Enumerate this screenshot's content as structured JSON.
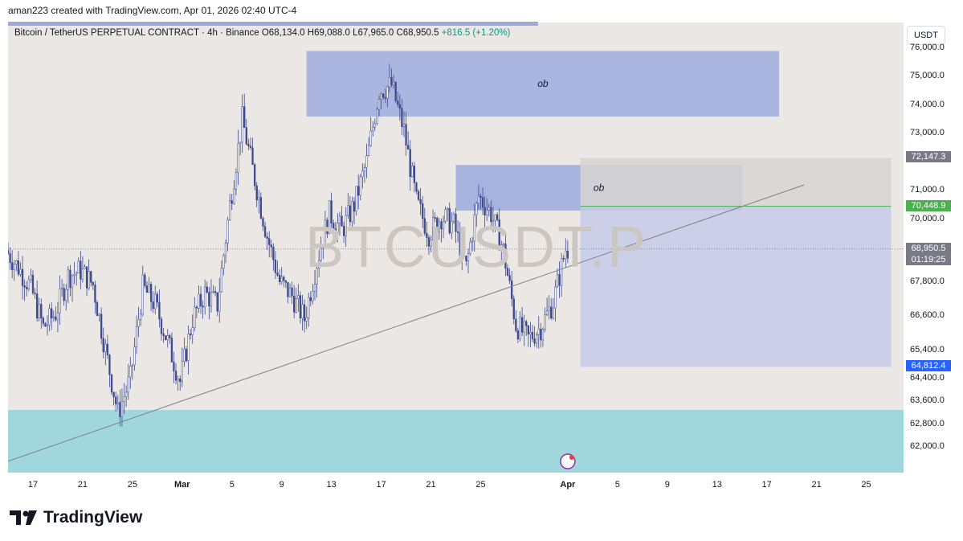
{
  "header": {
    "credit": "aman223 created with TradingView.com, Apr 01, 2026 02:40 UTC-4"
  },
  "legend": {
    "symbol": "Bitcoin / TetherUS PERPETUAL CONTRACT · 4h · Binance",
    "open": "O68,134.0",
    "high": "H69,088.0",
    "low": "L67,965.0",
    "close": "C68,950.5",
    "change": "+816.5 (+1.20%)"
  },
  "currency_button": "USDT",
  "watermark": "BTCUSDT.P",
  "brand": "TradingView",
  "colors": {
    "background": "#ebe7e4",
    "candle_up": "#3d4a8f",
    "candle_down": "#3d4a8f",
    "ob_zone": "#9fadde",
    "demand_zone": "#9fd7dd",
    "position_zone": "#c5cbe9",
    "stop_zone": "#d7d3d1",
    "label_grey": "#787b86",
    "label_green": "#4caf50",
    "label_blue": "#2962ff"
  },
  "chart_data": {
    "type": "candlestick",
    "title": "",
    "xlabel": "",
    "ylabel": "",
    "ylim": [
      61100,
      76900
    ],
    "y_ticks": [
      "76,000.0",
      "75,000.0",
      "74,000.0",
      "73,000.0",
      "71,000.0",
      "70,000.0",
      "67,800.0",
      "66,600.0",
      "65,400.0",
      "64,400.0",
      "63,600.0",
      "62,800.0",
      "62,000.0"
    ],
    "y_tick_values": [
      76000,
      75000,
      74000,
      73000,
      71000,
      70000,
      67800,
      66600,
      65400,
      64400,
      63600,
      62800,
      62000
    ],
    "x_ticks": [
      "17",
      "21",
      "25",
      "Mar",
      "5",
      "9",
      "13",
      "17",
      "21",
      "25",
      "Apr",
      "5",
      "9",
      "13",
      "17",
      "21",
      "25"
    ],
    "x_tick_major": [
      "Mar",
      "Apr"
    ],
    "x_tick_dates": [
      "2026-02-17",
      "2026-02-21",
      "2026-02-25",
      "2026-03-01",
      "2026-03-05",
      "2026-03-09",
      "2026-03-13",
      "2026-03-17",
      "2026-03-21",
      "2026-03-25",
      "2026-04-01",
      "2026-04-05",
      "2026-04-09",
      "2026-04-13",
      "2026-04-17",
      "2026-04-21",
      "2026-04-25"
    ],
    "x_range": [
      "2026-02-15",
      "2026-04-28"
    ],
    "price_path": [
      {
        "date": "2026-02-15",
        "price": 68900
      },
      {
        "date": "2026-02-16",
        "price": 68300
      },
      {
        "date": "2026-02-17",
        "price": 67600
      },
      {
        "date": "2026-02-18",
        "price": 66200
      },
      {
        "date": "2026-02-19",
        "price": 66700
      },
      {
        "date": "2026-02-20",
        "price": 68000
      },
      {
        "date": "2026-02-21",
        "price": 68200
      },
      {
        "date": "2026-02-22",
        "price": 67700
      },
      {
        "date": "2026-02-23",
        "price": 65400
      },
      {
        "date": "2026-02-24",
        "price": 63200
      },
      {
        "date": "2026-02-25",
        "price": 64400
      },
      {
        "date": "2026-02-26",
        "price": 67600
      },
      {
        "date": "2026-02-27",
        "price": 67000
      },
      {
        "date": "2026-02-28",
        "price": 65700
      },
      {
        "date": "2026-03-01",
        "price": 64300
      },
      {
        "date": "2026-03-02",
        "price": 66500
      },
      {
        "date": "2026-03-03",
        "price": 67400
      },
      {
        "date": "2026-03-04",
        "price": 67000
      },
      {
        "date": "2026-03-05",
        "price": 70500
      },
      {
        "date": "2026-03-06",
        "price": 73500
      },
      {
        "date": "2026-03-07",
        "price": 71400
      },
      {
        "date": "2026-03-08",
        "price": 69400
      },
      {
        "date": "2026-03-09",
        "price": 67800
      },
      {
        "date": "2026-03-10",
        "price": 67300
      },
      {
        "date": "2026-03-11",
        "price": 66500
      },
      {
        "date": "2026-03-12",
        "price": 68500
      },
      {
        "date": "2026-03-13",
        "price": 70200
      },
      {
        "date": "2026-03-14",
        "price": 69600
      },
      {
        "date": "2026-03-15",
        "price": 70500
      },
      {
        "date": "2026-03-16",
        "price": 72000
      },
      {
        "date": "2026-03-17",
        "price": 74500
      },
      {
        "date": "2026-03-18",
        "price": 74700
      },
      {
        "date": "2026-03-19",
        "price": 73100
      },
      {
        "date": "2026-03-20",
        "price": 70600
      },
      {
        "date": "2026-03-21",
        "price": 69500
      },
      {
        "date": "2026-03-22",
        "price": 70100
      },
      {
        "date": "2026-03-23",
        "price": 69800
      },
      {
        "date": "2026-03-24",
        "price": 68300
      },
      {
        "date": "2026-03-25",
        "price": 70800
      },
      {
        "date": "2026-03-26",
        "price": 70200
      },
      {
        "date": "2026-03-27",
        "price": 68900
      },
      {
        "date": "2026-03-28",
        "price": 66300
      },
      {
        "date": "2026-03-29",
        "price": 65800
      },
      {
        "date": "2026-03-30",
        "price": 66200
      },
      {
        "date": "2026-03-31",
        "price": 67100
      },
      {
        "date": "2026-04-01",
        "price": 68950
      }
    ],
    "zones": [
      {
        "label": "ob",
        "from": "2026-03-11",
        "to": "2026-04-18",
        "top": 75900,
        "bottom": 73600
      },
      {
        "label": "ob",
        "from": "2026-03-23",
        "to": "2026-04-15",
        "top": 71900,
        "bottom": 70300
      },
      {
        "label": "",
        "from": "2026-04-02",
        "to": "2026-04-27",
        "top": 72147.3,
        "bottom": 70448.9
      },
      {
        "label": "",
        "from": "2026-04-02",
        "to": "2026-04-27",
        "top": 70448.9,
        "bottom": 64812.4
      },
      {
        "label": "",
        "from": "2026-02-15",
        "to": "2026-04-28",
        "top": 63300,
        "bottom": 61100
      }
    ],
    "trendline": [
      {
        "date": "2026-02-15",
        "price": 61500
      },
      {
        "date": "2026-04-20",
        "price": 71200
      }
    ],
    "current_price": 68950.5,
    "price_labels": [
      {
        "text": "72,147.3",
        "value": 72147.3,
        "color": "grey"
      },
      {
        "text": "70,448.9",
        "value": 70448.9,
        "color": "green"
      },
      {
        "text": "68,950.5",
        "value": 68950.5,
        "color": "grey"
      },
      {
        "text": "01:19:25",
        "value": 68950.5,
        "color": "grey"
      },
      {
        "text": "64,812.4",
        "value": 64812.4,
        "color": "blue"
      }
    ]
  }
}
